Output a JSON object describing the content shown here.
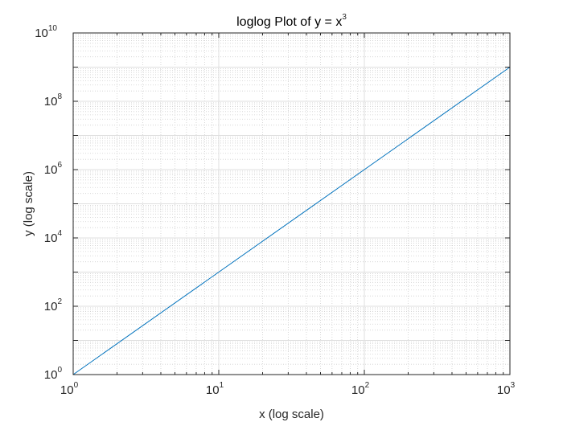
{
  "chart_data": {
    "type": "line",
    "title": "loglog Plot of y = x",
    "title_superscript": "3",
    "xlabel": "x (log scale)",
    "ylabel": "y (log scale)",
    "xscale": "log",
    "yscale": "log",
    "xlim": [
      1,
      1000
    ],
    "ylim": [
      1,
      10000000000
    ],
    "grid": true,
    "minor_grid": true,
    "legend": "none",
    "x_ticks": [
      {
        "base": "10",
        "exp": "0",
        "value": 1
      },
      {
        "base": "10",
        "exp": "1",
        "value": 10
      },
      {
        "base": "10",
        "exp": "2",
        "value": 100
      },
      {
        "base": "10",
        "exp": "3",
        "value": 1000
      }
    ],
    "y_ticks": [
      {
        "base": "10",
        "exp": "0",
        "value": 1
      },
      {
        "base": "10",
        "exp": "2",
        "value": 100
      },
      {
        "base": "10",
        "exp": "4",
        "value": 10000
      },
      {
        "base": "10",
        "exp": "6",
        "value": 1000000
      },
      {
        "base": "10",
        "exp": "8",
        "value": 100000000
      },
      {
        "base": "10",
        "exp": "10",
        "value": 10000000000
      }
    ],
    "series": [
      {
        "x": [
          1,
          10,
          100,
          1000
        ],
        "y": [
          1,
          1000,
          1000000,
          1000000000
        ],
        "color": "#0072BD"
      }
    ]
  }
}
